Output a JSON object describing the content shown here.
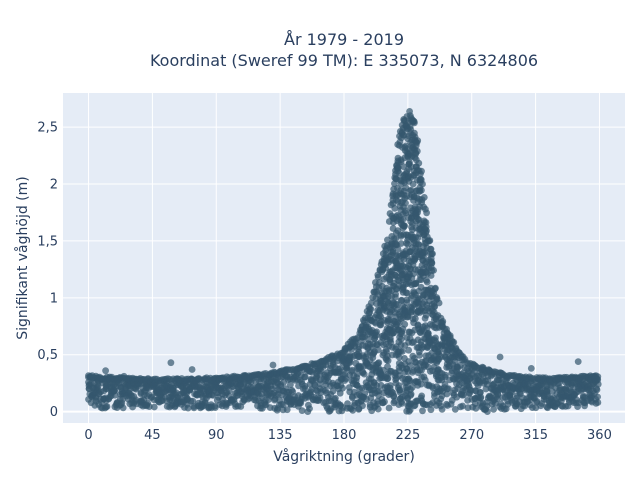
{
  "chart_data": {
    "type": "scatter",
    "title_line1": "År 1979 - 2019",
    "title_line2": "Koordinat (Sweref 99 TM): E 335073, N 6324806",
    "xlabel": "Vågriktning (grader)",
    "ylabel": "Signifikant våghöjd (m)",
    "xlim": [
      -18,
      378
    ],
    "ylim": [
      -0.1,
      2.8
    ],
    "x_ticks": [
      0,
      45,
      90,
      135,
      180,
      225,
      270,
      315,
      360
    ],
    "x_tick_labels": [
      "0",
      "45",
      "90",
      "135",
      "180",
      "225",
      "270",
      "315",
      "360"
    ],
    "y_ticks": [
      0,
      0.5,
      1,
      1.5,
      2,
      2.5
    ],
    "y_tick_labels": [
      "0",
      "0,5",
      "1",
      "1,5",
      "2",
      "2,5"
    ],
    "grid": true,
    "background": "#e5ecf6",
    "marker_color": "#34576d",
    "density_envelope": {
      "x": [
        0,
        20,
        45,
        60,
        90,
        120,
        135,
        150,
        165,
        180,
        190,
        200,
        210,
        215,
        220,
        225,
        230,
        235,
        240,
        245,
        250,
        260,
        270,
        285,
        300,
        315,
        330,
        345,
        360
      ],
      "y_max": [
        0.32,
        0.3,
        0.29,
        0.29,
        0.3,
        0.33,
        0.36,
        0.4,
        0.45,
        0.55,
        0.7,
        1.0,
        1.5,
        2.05,
        2.5,
        2.68,
        2.55,
        2.05,
        1.55,
        1.1,
        0.78,
        0.55,
        0.42,
        0.36,
        0.32,
        0.3,
        0.3,
        0.31,
        0.32
      ],
      "y_min": [
        0.03,
        0.03,
        0.03,
        0.03,
        0.03,
        0.02,
        0.01,
        0.0,
        0.0,
        0.0,
        0.0,
        0.0,
        0.0,
        0.0,
        0.0,
        0.0,
        0.0,
        0.0,
        0.0,
        0.0,
        0.0,
        0.0,
        0.0,
        0.0,
        0.02,
        0.03,
        0.03,
        0.03,
        0.03
      ]
    },
    "outliers": [
      {
        "x": 12,
        "y": 0.36
      },
      {
        "x": 58,
        "y": 0.43
      },
      {
        "x": 73,
        "y": 0.37
      },
      {
        "x": 130,
        "y": 0.41
      },
      {
        "x": 290,
        "y": 0.48
      },
      {
        "x": 345,
        "y": 0.44
      },
      {
        "x": 312,
        "y": 0.38
      },
      {
        "x": 25,
        "y": 0.31
      }
    ]
  }
}
